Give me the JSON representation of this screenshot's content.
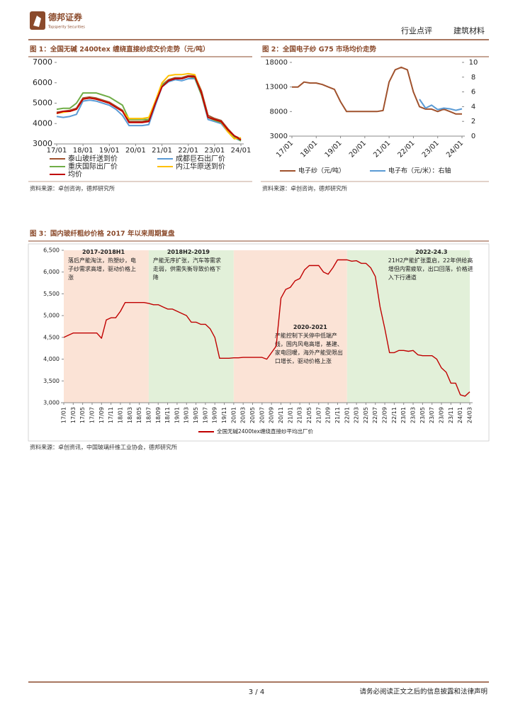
{
  "header": {
    "logo_name": "德邦证券",
    "logo_subtitle": "Topsperity Securities",
    "report_type": "行业点评",
    "sector": "建筑材料"
  },
  "figures": [
    {
      "title": "图 1：全国无碱 2400tex 缠绕直接纱成交价走势（元/吨）",
      "source": "资料来源：卓创咨询，德邦研究所"
    },
    {
      "title": "图 2：全国电子纱 G75 市场均价走势",
      "source": "资料来源：卓创咨询，德邦研究所"
    },
    {
      "title": "图 3：国内玻纤粗纱价格 2017 年以来周期复盘",
      "source": "资料来源：卓创资讯，中国玻璃纤维工业协会，德邦研究所"
    }
  ],
  "chart_data": [
    {
      "type": "line",
      "categories": [
        "17/01",
        null,
        null,
        null,
        "18/01",
        null,
        null,
        null,
        "19/01",
        null,
        null,
        null,
        "20/01",
        null,
        null,
        null,
        "21/01",
        null,
        null,
        null,
        "22/01",
        null,
        null,
        null,
        "23/01",
        null,
        null,
        null,
        "24/01"
      ],
      "ylim": [
        3000,
        7000
      ],
      "yticks": [
        3000,
        4000,
        5000,
        6000,
        7000
      ],
      "grid": false,
      "series": [
        {
          "name": "泰山玻纤送到价",
          "color": "#a0522d",
          "values": [
            4550,
            4600,
            4650,
            4750,
            5250,
            5300,
            5250,
            5150,
            5050,
            4850,
            4650,
            4100,
            4100,
            4100,
            4150,
            5050,
            5900,
            6150,
            6250,
            6250,
            6350,
            6350,
            5600,
            4400,
            4250,
            4150,
            3750,
            3400,
            3250
          ]
        },
        {
          "name": "成都巨石出厂价",
          "color": "#5b9bd5",
          "values": [
            4350,
            4300,
            4350,
            4450,
            5100,
            5150,
            5100,
            5000,
            4900,
            4700,
            4400,
            3900,
            3900,
            3900,
            3950,
            4900,
            5800,
            6050,
            6150,
            6100,
            6200,
            6200,
            5400,
            4200,
            4100,
            4000,
            3600,
            3300,
            3150
          ]
        },
        {
          "name": "重庆国际出厂价",
          "color": "#70ad47",
          "values": [
            4700,
            4750,
            4750,
            5000,
            5500,
            5500,
            5500,
            5400,
            5300,
            5100,
            4900,
            4200,
            4200,
            4200,
            4200,
            5100,
            5900,
            6100,
            6200,
            6200,
            6300,
            6250,
            5400,
            4300,
            4150,
            4050,
            3700,
            3350,
            3150
          ]
        },
        {
          "name": "内江华原送到价",
          "color": "#ffc000",
          "values": [
            4500,
            4550,
            4600,
            4700,
            5200,
            5250,
            5200,
            5100,
            5000,
            4800,
            4600,
            4250,
            4250,
            4250,
            4300,
            5100,
            6000,
            6350,
            6400,
            6400,
            6450,
            6400,
            5500,
            4300,
            4200,
            4100,
            3600,
            3250,
            3300
          ]
        },
        {
          "name": "均价",
          "color": "#c00000",
          "values": [
            4500,
            4600,
            4600,
            4700,
            5200,
            5250,
            5200,
            5100,
            5000,
            4800,
            4600,
            4050,
            4050,
            4050,
            4100,
            5000,
            5800,
            6100,
            6200,
            6200,
            6300,
            6300,
            5500,
            4300,
            4200,
            4100,
            3700,
            3400,
            3200
          ]
        }
      ]
    },
    {
      "type": "line",
      "categories": [
        "17/01",
        null,
        null,
        null,
        "18/01",
        null,
        null,
        null,
        "19/01",
        null,
        null,
        null,
        "20/01",
        null,
        null,
        null,
        "21/01",
        null,
        null,
        null,
        "22/01",
        null,
        null,
        null,
        "23/01",
        null,
        null,
        null,
        "24/01"
      ],
      "ylim": [
        3000,
        18000
      ],
      "yticks": [
        3000,
        8000,
        13000,
        18000
      ],
      "y2lim": [
        0,
        10
      ],
      "y2ticks": [
        0,
        2,
        4,
        6,
        8,
        10
      ],
      "grid": false,
      "series": [
        {
          "name": "电子纱（元/吨）",
          "color": "#a0522d",
          "values": [
            13000,
            13000,
            14000,
            13800,
            13800,
            13500,
            13000,
            12500,
            10000,
            8000,
            8000,
            8000,
            8000,
            8000,
            8000,
            8200,
            14000,
            16500,
            17000,
            16500,
            12000,
            9000,
            8500,
            8500,
            8000,
            8500,
            8000,
            7500,
            7500
          ]
        },
        {
          "name": "电子布（元/米）：右轴",
          "color": "#5b9bd5",
          "axis": "y2",
          "values": [
            null,
            null,
            null,
            null,
            null,
            null,
            null,
            null,
            null,
            null,
            null,
            null,
            null,
            null,
            null,
            null,
            null,
            null,
            null,
            null,
            null,
            5.0,
            3.8,
            4.2,
            3.6,
            3.8,
            3.7,
            3.5,
            3.7
          ]
        }
      ]
    },
    {
      "type": "line",
      "categories": [
        "17/01",
        null,
        "17/03",
        null,
        "17/05",
        null,
        "17/07",
        null,
        "17/09",
        null,
        "17/11",
        null,
        "18/01",
        null,
        "18/03",
        null,
        "18/05",
        null,
        "18/07",
        null,
        "18/09",
        null,
        "18/11",
        null,
        "19/01",
        null,
        "19/03",
        null,
        "19/05",
        null,
        "19/07",
        null,
        "19/09",
        null,
        "19/11",
        null,
        "20/01",
        null,
        "20/03",
        null,
        "20/05",
        null,
        "20/07",
        null,
        "20/09",
        null,
        "20/11",
        null,
        "21/01",
        null,
        "21/03",
        null,
        "21/05",
        null,
        "21/07",
        null,
        "21/09",
        null,
        "21/11",
        null,
        "22/01",
        null,
        "22/03",
        null,
        "22/05",
        null,
        "22/07",
        null,
        "22/09",
        null,
        "22/11",
        null,
        "23/01",
        null,
        "23/03",
        null,
        "23/05",
        null,
        "23/07",
        null,
        "23/09",
        null,
        "23/11",
        null,
        "24/01",
        null,
        "24/03"
      ],
      "ylim": [
        3000,
        6500
      ],
      "yticks": [
        {
          "value": 3000,
          "label": "3,000"
        },
        {
          "value": 3500,
          "label": "3,500"
        },
        {
          "value": 4000,
          "label": "4,000"
        },
        {
          "value": 4500,
          "label": "4,500"
        },
        {
          "value": 5000,
          "label": "5,000"
        },
        {
          "value": 5500,
          "label": "5,500"
        },
        {
          "value": 6000,
          "label": "6,000"
        },
        {
          "value": 6500,
          "label": "6,500"
        }
      ],
      "grid": false,
      "series": [
        {
          "name": "全国无碱2400tex缠绕直接纱平均出厂价",
          "color": "#c00000",
          "values": [
            4500,
            4550,
            4600,
            4600,
            4600,
            4600,
            4600,
            4600,
            4480,
            4900,
            4950,
            4950,
            5100,
            5300,
            5300,
            5300,
            5300,
            5300,
            5280,
            5250,
            5250,
            5200,
            5150,
            5150,
            5100,
            5050,
            5000,
            4850,
            4850,
            4800,
            4800,
            4700,
            4500,
            4020,
            4020,
            4020,
            4030,
            4030,
            4040,
            4040,
            4040,
            4040,
            4040,
            4000,
            4150,
            4300,
            5400,
            5600,
            5650,
            5800,
            5850,
            6050,
            6150,
            6150,
            6150,
            6000,
            5950,
            6100,
            6280,
            6280,
            6280,
            6250,
            6260,
            6200,
            6200,
            6100,
            5900,
            5200,
            4700,
            4150,
            4150,
            4200,
            4200,
            4180,
            4200,
            4100,
            4080,
            4080,
            4080,
            4000,
            3800,
            3700,
            3450,
            3450,
            3180,
            3150,
            3250
          ]
        }
      ],
      "annotations": [
        {
          "title": "2017-2018H1",
          "text": "落后产能淘汰，热塑纱，电子纱需求高增，驱动价格上涨",
          "start": "17/01",
          "end": "18/07",
          "color": "#fbe3d6"
        },
        {
          "title": "2018H2-2019",
          "text": "产能无序扩张，汽车等需求走弱，供需失衡导致价格下降",
          "start": "18/07",
          "end": "20/01",
          "color": "#e2f0d9"
        },
        {
          "title": "2020-2021",
          "text": "产能控制下关停中低端产线，国内风电高增，基建、家电回暖，海外产能受限出口增长，驱动价格上涨",
          "start": "20/01",
          "end": "22/01",
          "color": "#fbe3d6"
        },
        {
          "title": "2022-24.3",
          "text": "21H2产能扩张重启，22年供给高增但内需疲软，出口回落，价格进入下行通道",
          "start": "22/01",
          "end": "24/03",
          "color": "#e2f0d9"
        }
      ]
    }
  ],
  "footer": {
    "page": "3 / 4",
    "disclaimer": "请务必阅读正文之后的信息披露和法律声明"
  }
}
